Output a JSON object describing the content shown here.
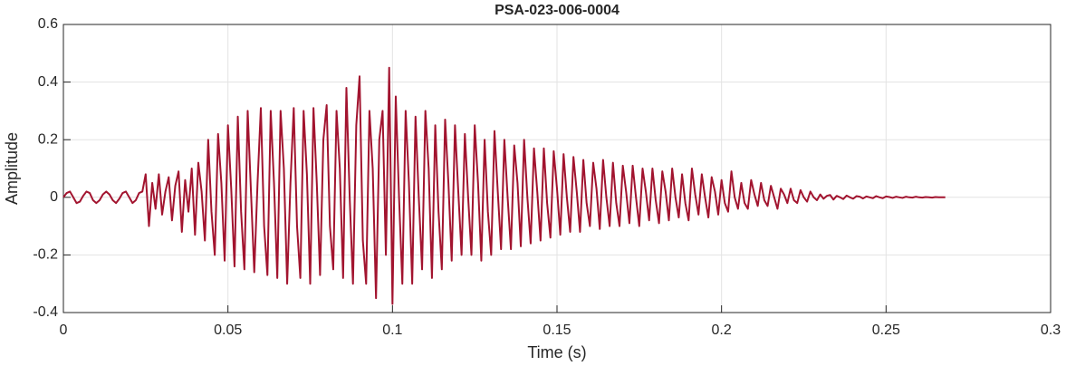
{
  "chart_data": {
    "type": "line",
    "title": "PSA-023-006-0004",
    "xlabel": "Time (s)",
    "ylabel": "Amplitude",
    "color": "#a2142f",
    "grid": true,
    "xlim": [
      0,
      0.3
    ],
    "xticks": [
      0,
      0.05,
      0.1,
      0.15,
      0.2,
      0.25,
      0.3
    ],
    "ylim": [
      -0.4,
      0.6
    ],
    "yticks": [
      -0.4,
      -0.2,
      0,
      0.2,
      0.4,
      0.6
    ],
    "x": [
      0,
      0.001,
      0.002,
      0.003,
      0.004,
      0.005,
      0.006,
      0.007,
      0.008,
      0.009,
      0.01,
      0.011,
      0.012,
      0.013,
      0.014,
      0.015,
      0.016,
      0.017,
      0.018,
      0.019,
      0.02,
      0.021,
      0.022,
      0.023,
      0.024,
      0.025,
      0.026,
      0.027,
      0.028,
      0.029,
      0.03,
      0.031,
      0.032,
      0.033,
      0.034,
      0.035,
      0.036,
      0.037,
      0.038,
      0.039,
      0.04,
      0.041,
      0.042,
      0.043,
      0.044,
      0.045,
      0.046,
      0.047,
      0.048,
      0.049,
      0.05,
      0.051,
      0.052,
      0.053,
      0.054,
      0.055,
      0.056,
      0.057,
      0.058,
      0.059,
      0.06,
      0.061,
      0.062,
      0.063,
      0.064,
      0.065,
      0.066,
      0.067,
      0.068,
      0.069,
      0.07,
      0.071,
      0.072,
      0.073,
      0.074,
      0.075,
      0.076,
      0.077,
      0.078,
      0.079,
      0.08,
      0.081,
      0.082,
      0.083,
      0.084,
      0.085,
      0.086,
      0.087,
      0.088,
      0.089,
      0.09,
      0.091,
      0.092,
      0.093,
      0.094,
      0.095,
      0.096,
      0.097,
      0.098,
      0.099,
      0.1,
      0.101,
      0.102,
      0.103,
      0.104,
      0.105,
      0.106,
      0.107,
      0.108,
      0.109,
      0.11,
      0.111,
      0.112,
      0.113,
      0.114,
      0.115,
      0.116,
      0.117,
      0.118,
      0.119,
      0.12,
      0.121,
      0.122,
      0.123,
      0.124,
      0.125,
      0.126,
      0.127,
      0.128,
      0.129,
      0.13,
      0.131,
      0.132,
      0.133,
      0.134,
      0.135,
      0.136,
      0.137,
      0.138,
      0.139,
      0.14,
      0.141,
      0.142,
      0.143,
      0.144,
      0.145,
      0.146,
      0.147,
      0.148,
      0.149,
      0.15,
      0.151,
      0.152,
      0.153,
      0.154,
      0.155,
      0.156,
      0.157,
      0.158,
      0.159,
      0.16,
      0.161,
      0.162,
      0.163,
      0.164,
      0.165,
      0.166,
      0.167,
      0.168,
      0.169,
      0.17,
      0.171,
      0.172,
      0.173,
      0.174,
      0.175,
      0.176,
      0.177,
      0.178,
      0.179,
      0.18,
      0.181,
      0.182,
      0.183,
      0.184,
      0.185,
      0.186,
      0.187,
      0.188,
      0.189,
      0.19,
      0.191,
      0.192,
      0.193,
      0.194,
      0.195,
      0.196,
      0.197,
      0.198,
      0.199,
      0.2,
      0.201,
      0.202,
      0.203,
      0.204,
      0.205,
      0.206,
      0.207,
      0.208,
      0.209,
      0.21,
      0.211,
      0.212,
      0.213,
      0.214,
      0.215,
      0.216,
      0.217,
      0.218,
      0.219,
      0.22,
      0.221,
      0.222,
      0.223,
      0.224,
      0.225,
      0.226,
      0.227,
      0.228,
      0.229,
      0.23,
      0.231,
      0.232,
      0.233,
      0.234,
      0.235,
      0.236,
      0.237,
      0.238,
      0.239,
      0.24,
      0.241,
      0.242,
      0.243,
      0.244,
      0.245,
      0.246,
      0.247,
      0.248,
      0.249,
      0.25,
      0.251,
      0.252,
      0.253,
      0.254,
      0.255,
      0.256,
      0.257,
      0.258,
      0.259,
      0.26,
      0.261,
      0.262,
      0.263,
      0.264,
      0.265,
      0.266,
      0.267,
      0.268
    ],
    "values": [
      0.0,
      0.015,
      0.02,
      0.0,
      -0.02,
      -0.015,
      0.005,
      0.02,
      0.015,
      -0.01,
      -0.02,
      -0.01,
      0.01,
      0.02,
      0.01,
      -0.01,
      -0.02,
      -0.005,
      0.015,
      0.02,
      0.0,
      -0.02,
      -0.01,
      0.015,
      0.02,
      0.08,
      -0.1,
      0.05,
      -0.04,
      0.08,
      -0.06,
      0.02,
      0.07,
      -0.08,
      0.04,
      0.09,
      -0.12,
      0.06,
      -0.05,
      0.1,
      -0.13,
      0.12,
      0.02,
      -0.15,
      0.2,
      -0.05,
      -0.2,
      0.22,
      0.05,
      -0.22,
      0.25,
      0.03,
      -0.24,
      0.28,
      -0.05,
      -0.25,
      0.3,
      0.02,
      -0.26,
      0.05,
      0.31,
      -0.1,
      -0.27,
      0.3,
      0.05,
      -0.28,
      0.3,
      0.1,
      -0.3,
      0.05,
      0.31,
      -0.1,
      -0.28,
      0.3,
      0.08,
      -0.3,
      0.31,
      0.05,
      -0.27,
      0.2,
      0.32,
      -0.1,
      -0.25,
      0.3,
      0.1,
      -0.28,
      0.38,
      0.0,
      -0.3,
      0.25,
      0.42,
      -0.15,
      -0.3,
      0.3,
      0.1,
      -0.35,
      0.2,
      0.3,
      -0.2,
      0.45,
      -0.37,
      0.35,
      0.0,
      -0.3,
      0.3,
      0.05,
      -0.3,
      0.28,
      0.0,
      -0.25,
      0.3,
      0.1,
      -0.28,
      0.25,
      -0.05,
      -0.25,
      0.27,
      0.05,
      -0.22,
      0.25,
      0.02,
      -0.2,
      0.22,
      0.0,
      -0.2,
      0.25,
      0.05,
      -0.22,
      0.2,
      -0.05,
      -0.2,
      0.23,
      0.02,
      -0.18,
      0.2,
      0.0,
      -0.18,
      0.18,
      0.05,
      -0.17,
      0.2,
      0.0,
      -0.16,
      0.17,
      0.02,
      -0.15,
      0.17,
      -0.02,
      -0.14,
      0.16,
      0.03,
      -0.13,
      0.15,
      0.0,
      -0.12,
      0.14,
      0.02,
      -0.12,
      0.13,
      -0.02,
      -0.1,
      0.12,
      0.03,
      -0.11,
      0.13,
      0.0,
      -0.1,
      0.12,
      -0.02,
      -0.1,
      0.11,
      0.02,
      -0.09,
      0.11,
      0.0,
      -0.1,
      0.1,
      0.02,
      -0.08,
      0.1,
      -0.01,
      -0.09,
      0.09,
      0.02,
      -0.08,
      0.1,
      0.0,
      -0.07,
      0.08,
      -0.02,
      -0.08,
      0.1,
      0.01,
      -0.06,
      0.08,
      0.0,
      -0.07,
      0.07,
      0.02,
      -0.06,
      0.06,
      -0.02,
      -0.05,
      0.09,
      0.0,
      -0.04,
      0.05,
      -0.02,
      -0.04,
      0.06,
      0.01,
      -0.03,
      0.05,
      -0.01,
      -0.03,
      0.04,
      0.0,
      -0.04,
      0.03,
      0.01,
      -0.02,
      0.03,
      -0.01,
      -0.02,
      0.025,
      0.0,
      -0.015,
      0.02,
      0.0,
      -0.01,
      0.01,
      -0.005,
      0.005,
      0.008,
      -0.008,
      0.005,
      0.0,
      -0.006,
      0.006,
      0.0,
      -0.005,
      0.004,
      0.002,
      -0.004,
      0.003,
      0.0,
      -0.003,
      0.004,
      0.0,
      -0.003,
      0.003,
      0.001,
      -0.002,
      0.002,
      0.0,
      -0.002,
      0.002,
      0.0,
      -0.001,
      0.002,
      0.0,
      -0.001,
      0.001,
      0.0,
      -0.001,
      0.001,
      0.0,
      0.0,
      0.0
    ]
  }
}
